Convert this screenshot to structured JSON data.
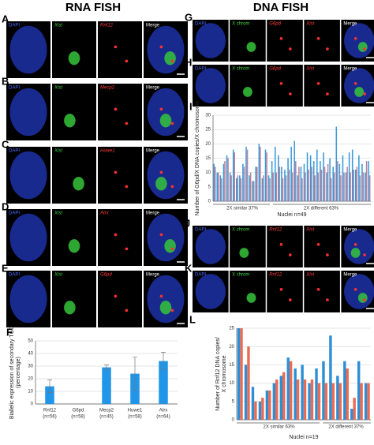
{
  "headers": {
    "rna": "RNA FISH",
    "dna": "DNA FISH"
  },
  "panels": [
    {
      "letter": "A",
      "labels": [
        "DAPI",
        "Xist",
        "Rnf12",
        "Merge"
      ]
    },
    {
      "letter": "B",
      "labels": [
        "DAPI",
        "Xist",
        "Mecp2",
        "Merge"
      ]
    },
    {
      "letter": "C",
      "labels": [
        "DAPI",
        "Xist",
        "Huwe1",
        "Merge"
      ]
    },
    {
      "letter": "D",
      "labels": [
        "DAPI",
        "Xist",
        "Atrx",
        "Merge"
      ]
    },
    {
      "letter": "E",
      "labels": [
        "DAPI",
        "Xist",
        "G6pd",
        "Merge"
      ]
    },
    {
      "letter": "G",
      "labels": [
        "DAPI",
        "X chrom",
        "G6pd",
        "Xist",
        "Merge"
      ]
    },
    {
      "letter": "H",
      "labels": [
        "DAPI",
        "X chrom",
        "G6pd",
        "Xist",
        "Merge"
      ]
    },
    {
      "letter": "J",
      "labels": [
        "DAPI",
        "X chrom",
        "Rnf12",
        "Xist",
        "Merge"
      ]
    },
    {
      "letter": "K",
      "labels": [
        "DAPI",
        "X chrom",
        "Rnf12",
        "Xist",
        "Merge"
      ]
    }
  ],
  "chart_data": [
    {
      "panel": "F",
      "type": "bar",
      "y_label": [
        "Biallelic expression of secondary TGC",
        "(percentage)"
      ],
      "categories": [
        "Rnf12",
        "G6pd",
        "Mecp2",
        "Huwe1",
        "Atrx"
      ],
      "sublabels": [
        "(n=56)",
        "(n=58)",
        "(n=45)",
        "(n=58)",
        "(n=64)"
      ],
      "values": [
        14,
        0,
        29,
        24,
        34
      ],
      "errors": [
        5,
        0,
        2,
        13,
        7
      ],
      "color": "#2196e8",
      "ylim": [
        0,
        50
      ],
      "yticks": [
        0,
        10,
        20,
        30,
        40,
        50
      ],
      "grid": true
    },
    {
      "panel": "I",
      "type": "grouped-bar",
      "y_label": [
        "Number of G6pd/X DNA copies/X chromosome"
      ],
      "group_labels": [
        "2X similar 37%",
        "2X different 63%"
      ],
      "x_label": "Nuclei n=49",
      "ylim": [
        0,
        30
      ],
      "yticks": [
        0,
        5,
        10,
        15,
        20,
        25,
        30
      ],
      "grid": true,
      "series": [
        {
          "color": "#3a9ad9",
          "values": [
            13,
            10,
            9,
            13,
            16,
            10,
            18,
            8,
            9,
            13,
            19,
            9,
            7,
            12,
            20,
            8,
            18,
            9,
            14,
            19,
            16,
            12,
            11,
            15,
            19,
            21,
            9,
            12,
            13,
            17,
            16,
            14,
            18,
            14,
            17,
            10,
            15,
            12,
            26,
            13,
            16,
            10,
            17,
            18,
            11,
            16,
            13,
            10,
            14
          ]
        },
        {
          "color": "#b9839f",
          "values": [
            12,
            10,
            8,
            14,
            15,
            9,
            17,
            9,
            8,
            12,
            18,
            10,
            7,
            12,
            19,
            9,
            17,
            8,
            10,
            10,
            12,
            8,
            9,
            11,
            10,
            14,
            12,
            8,
            10,
            11,
            12,
            9,
            10,
            11,
            12,
            13,
            8,
            10,
            14,
            9,
            10,
            12,
            10,
            11,
            12,
            9,
            10,
            14,
            9
          ]
        }
      ]
    },
    {
      "panel": "L",
      "type": "grouped-bar",
      "y_label": [
        "Number of Rnf12 DNA copies/",
        "X chromosome"
      ],
      "group_labels": [
        "2X similar 63%",
        "2X different 37%"
      ],
      "x_label": "Nuclei n=19",
      "ylim": [
        0,
        25
      ],
      "yticks": [
        0,
        5,
        10,
        15,
        20,
        25
      ],
      "grid": true,
      "series": [
        {
          "color": "#2b8fd6",
          "values": [
            25,
            15,
            9,
            5,
            8,
            10,
            12,
            17,
            14,
            15,
            10,
            14,
            16,
            23,
            12,
            16,
            3,
            16,
            10
          ]
        },
        {
          "color": "#ea6a52",
          "values": [
            25,
            20,
            5,
            6,
            8,
            11,
            13,
            16,
            11,
            11,
            11,
            10,
            10,
            10,
            10,
            14,
            6,
            10,
            10
          ]
        }
      ]
    }
  ]
}
